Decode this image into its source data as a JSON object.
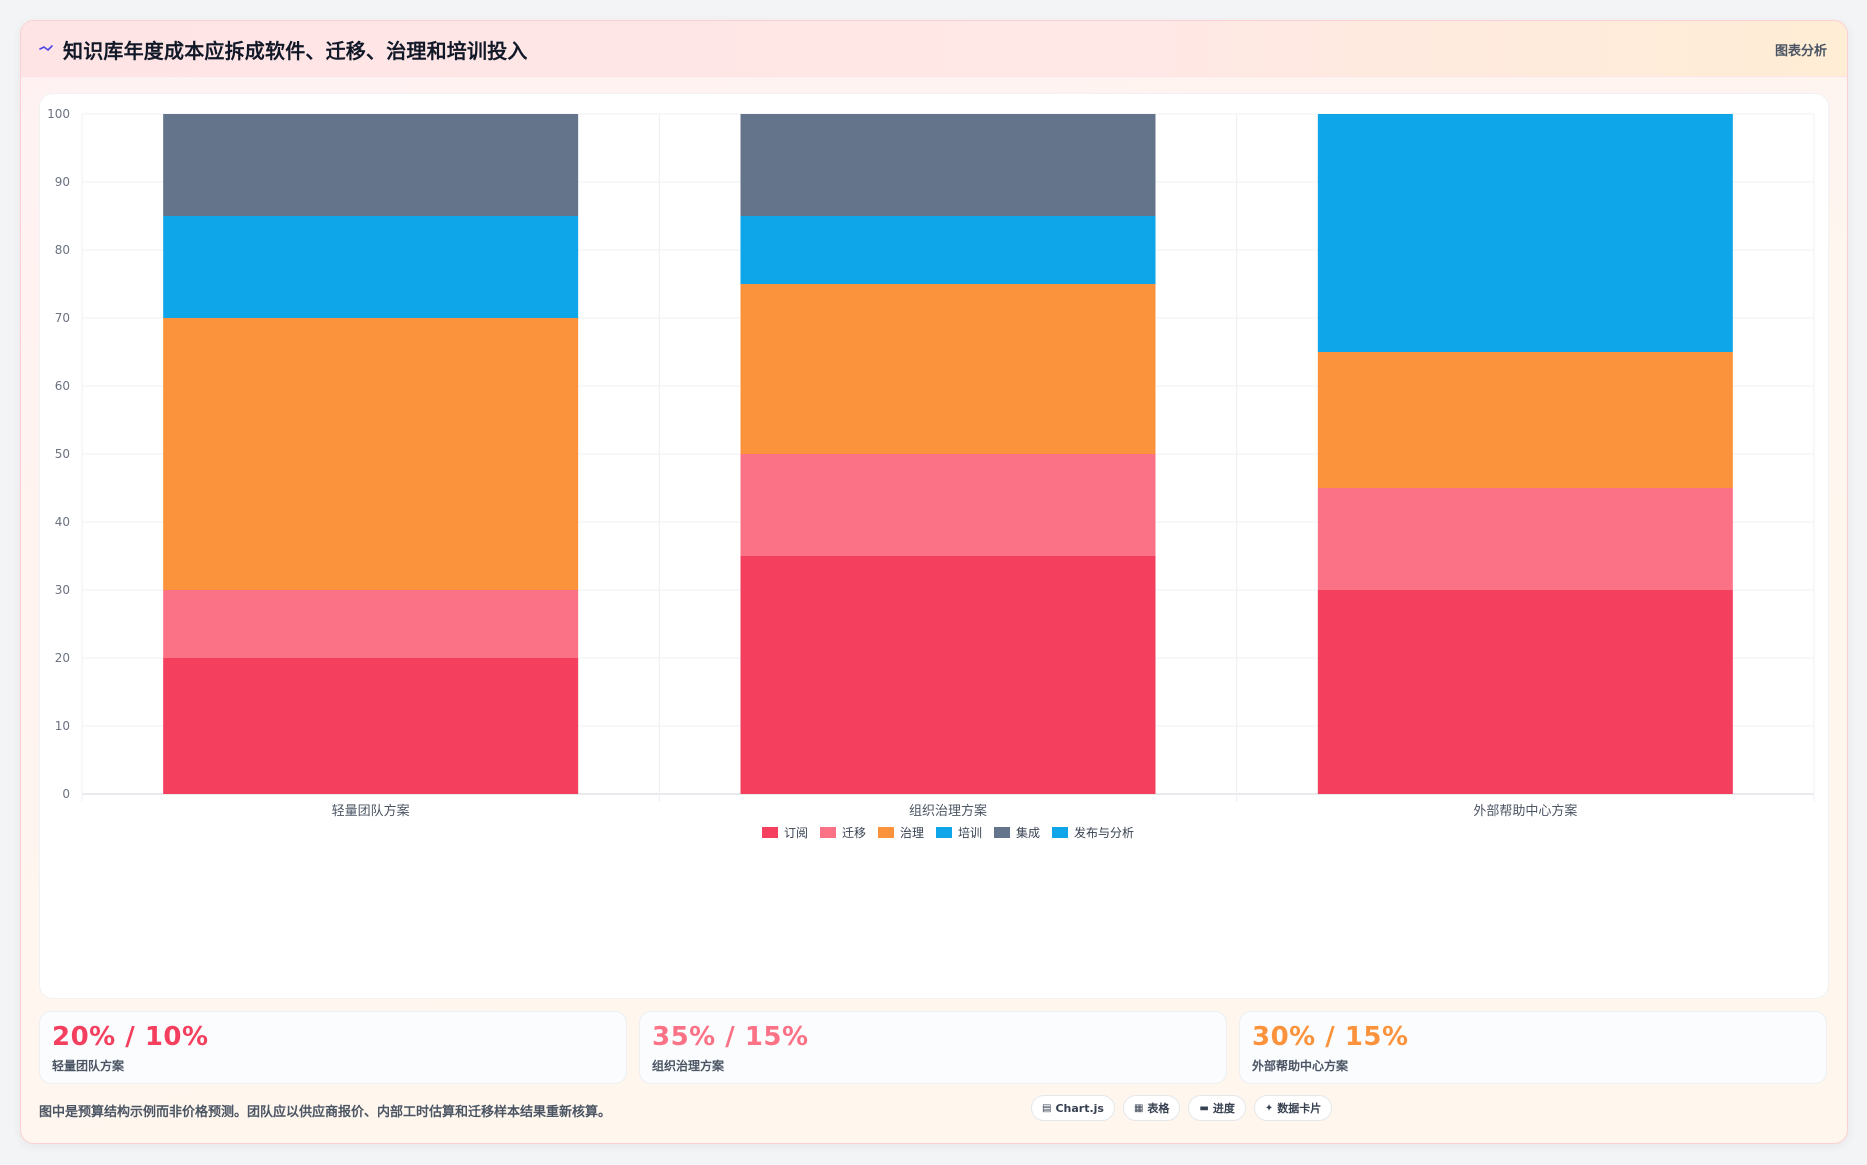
{
  "header": {
    "title": "知识库年度成本应拆成软件、迁移、治理和培训投入",
    "analysis_link": "图表分析"
  },
  "chart_data": {
    "type": "bar",
    "stacked": true,
    "categories": [
      "轻量团队方案",
      "组织治理方案",
      "外部帮助中心方案"
    ],
    "series": [
      {
        "name": "订阅",
        "color": "#f43f5e",
        "values": [
          20,
          35,
          30
        ]
      },
      {
        "name": "迁移",
        "color": "#fb7185",
        "values": [
          10,
          15,
          15
        ]
      },
      {
        "name": "治理",
        "color": "#fb923c",
        "values": [
          40,
          25,
          20
        ]
      },
      {
        "name": "培训",
        "color": "#0ea5e9",
        "values": [
          15,
          10,
          0
        ]
      },
      {
        "name": "集成",
        "color": "#64748b",
        "values": [
          15,
          15,
          0
        ]
      },
      {
        "name": "发布与分析",
        "color": "#0ea5e9",
        "values": [
          0,
          0,
          35
        ]
      }
    ],
    "ylim": [
      0,
      100
    ],
    "yticks": [
      0,
      10,
      20,
      30,
      40,
      50,
      60,
      70,
      80,
      90,
      100
    ],
    "grid": true,
    "legend_position": "bottom"
  },
  "stats": [
    {
      "value": "20% / 10%",
      "label": "轻量团队方案",
      "color": "#f43f5e"
    },
    {
      "value": "35% / 15%",
      "label": "组织治理方案",
      "color": "#fb7185"
    },
    {
      "value": "30% / 15%",
      "label": "外部帮助中心方案",
      "color": "#fb923c"
    }
  ],
  "footnote": "图中是预算结构示例而非价格预测。团队应以供应商报价、内部工时估算和迁移样本结果重新核算。",
  "pills": [
    {
      "icon": "▤",
      "icon_name": "chart-icon",
      "label": "Chart.js"
    },
    {
      "icon": "▦",
      "icon_name": "table-icon",
      "label": "表格"
    },
    {
      "icon": "▬",
      "icon_name": "progress-icon",
      "label": "进度"
    },
    {
      "icon": "✦",
      "icon_name": "sparkle-icon",
      "label": "数据卡片"
    }
  ]
}
